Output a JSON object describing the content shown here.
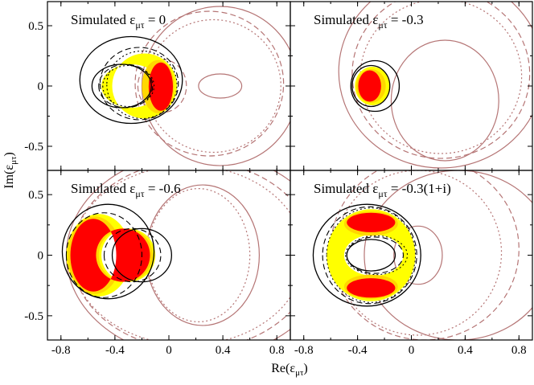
{
  "chart_data": {
    "type": "contour",
    "layout": "2x2 panels, shared axes",
    "xlabel": "Re(ε_μτ)",
    "ylabel": "Im(ε_μτ)",
    "xlim": [
      -0.9,
      0.9
    ],
    "ylim": [
      -0.7,
      0.7
    ],
    "xticks": [
      -0.8,
      -0.4,
      0,
      0.4,
      0.8
    ],
    "yticks": [
      -0.5,
      0,
      0.5
    ],
    "xticklabels": [
      "-0.8",
      "-0.4",
      "0",
      "0.4",
      "0.8"
    ],
    "yticklabels": [
      "-0.5",
      "0",
      "0.5"
    ],
    "colors": {
      "fill_inner": "#ff0000",
      "fill_mid": "#ffd700",
      "fill_outer": "#ffff00",
      "line_black": "#000000",
      "line_brown": "#b57575"
    },
    "panels": [
      {
        "title": "Simulated ε_μτ = 0",
        "simulated_value": "0",
        "title_prefix": "Simulated ε",
        "title_sub": "μτ",
        "title_suffix": " = 0",
        "true_point": [
          0,
          0
        ],
        "note": "crescent of allowed region opening toward negative Re; filled region near Re≈0"
      },
      {
        "title": "Simulated ε_μτ = -0.3",
        "simulated_value": "-0.3",
        "title_prefix": "Simulated ε",
        "title_sub": "μτ",
        "title_suffix": " = -0.3",
        "true_point": [
          -0.3,
          0
        ],
        "note": "closed ellipse around Re≈-0.3"
      },
      {
        "title": "Simulated ε_μτ = -0.6",
        "simulated_value": "-0.6",
        "title_prefix": "Simulated ε",
        "title_sub": "μτ",
        "title_suffix": " = -0.6",
        "true_point": [
          -0.6,
          0
        ],
        "note": "crescent opening toward positive Re around Re≈-0.55"
      },
      {
        "title": "Simulated ε_μτ = -0.3(1+i)",
        "simulated_value": "-0.3(1+i)",
        "title_prefix": "Simulated ε",
        "title_sub": "μτ",
        "title_suffix": " = -0.3(1+i)",
        "true_point": [
          -0.3,
          -0.3
        ],
        "note": "annulus centered near Re≈-0.3 with two filled lobes at Im≈±0.3"
      }
    ]
  }
}
